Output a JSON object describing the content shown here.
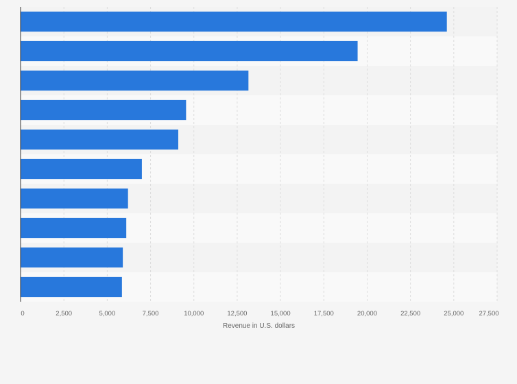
{
  "chart_data": {
    "type": "bar",
    "orientation": "horizontal",
    "title": "",
    "xlabel": "Revenue in U.S. dollars",
    "ylabel": "",
    "xlim": [
      0,
      27500
    ],
    "xticks": [
      0,
      2500,
      5000,
      7500,
      10000,
      12500,
      15000,
      17500,
      20000,
      22500,
      25000,
      27500
    ],
    "xtick_labels": [
      "0",
      "2,500",
      "5,000",
      "7,500",
      "10,000",
      "12,500",
      "15,000",
      "17,500",
      "20,000",
      "22,500",
      "25,000",
      "27,500"
    ],
    "values": [
      24600,
      19450,
      13150,
      9550,
      9100,
      7000,
      6200,
      6100,
      5900,
      5850
    ],
    "grid": true,
    "legend": "none",
    "colors": {
      "bar": "#2878dc",
      "band_dark": "#f3f3f3",
      "band_light": "#f9f9f9",
      "grid": "#dcdcdc",
      "axis": "#333333",
      "text": "#666666",
      "background": "#f5f5f5"
    }
  }
}
